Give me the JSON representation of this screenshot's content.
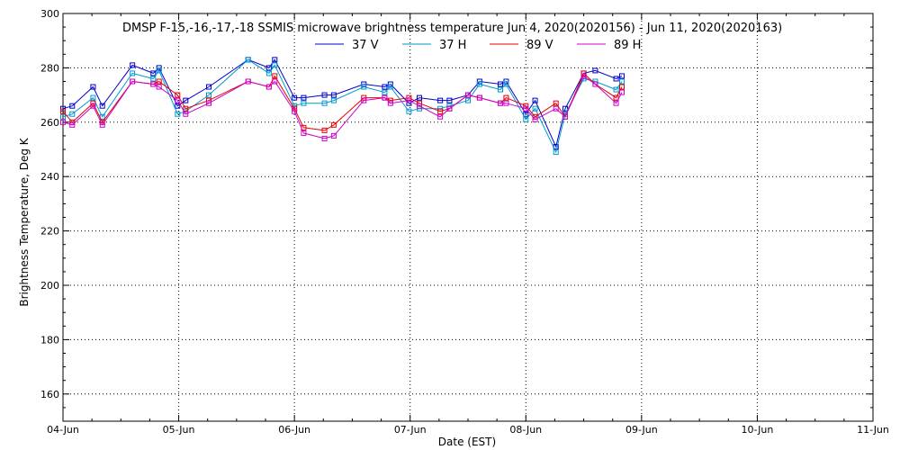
{
  "chart_data": {
    "type": "line",
    "title": "DMSP F-15,-16,-17,-18 SSMIS microwave brightness temperature Jun  4, 2020(2020156) - Jun 11, 2020(2020163)",
    "xlabel": "Date (EST)",
    "ylabel": "Brightness Temperature, Deg K",
    "x_ticks": [
      "04-Jun",
      "05-Jun",
      "06-Jun",
      "07-Jun",
      "08-Jun",
      "09-Jun",
      "10-Jun",
      "11-Jun"
    ],
    "xlim": [
      0,
      7
    ],
    "x_units": "days since 04-Jun",
    "ylim": [
      150,
      300
    ],
    "y_ticks": [
      160,
      180,
      200,
      220,
      240,
      260,
      280,
      300
    ],
    "grid": true,
    "legend_position": "top",
    "x": [
      0.0,
      0.08,
      0.26,
      0.34,
      0.6,
      0.78,
      0.83,
      0.99,
      1.06,
      1.26,
      1.6,
      1.78,
      1.83,
      2.0,
      2.08,
      2.26,
      2.34,
      2.6,
      2.78,
      2.83,
      2.99,
      3.08,
      3.26,
      3.34,
      3.5,
      3.6,
      3.78,
      3.83,
      4.0,
      4.08,
      4.26,
      4.34,
      4.5,
      4.6,
      4.78,
      4.83
    ],
    "series": [
      {
        "name": "37 V",
        "color": "#0000cc",
        "values": [
          265,
          266,
          273,
          266,
          281,
          278,
          280,
          266,
          268,
          273,
          283,
          280,
          283,
          269,
          269,
          270,
          270,
          274,
          273,
          274,
          267,
          269,
          268,
          268,
          270,
          275,
          274,
          275,
          263,
          268,
          251,
          265,
          278,
          279,
          276,
          277
        ]
      },
      {
        "name": "37 H",
        "color": "#0099cc",
        "values": [
          262,
          263,
          269,
          262,
          278,
          276,
          279,
          263,
          264,
          270,
          283,
          278,
          281,
          266,
          267,
          267,
          268,
          273,
          271,
          273,
          264,
          265,
          265,
          266,
          268,
          274,
          272,
          274,
          261,
          265,
          249,
          263,
          276,
          275,
          272,
          275
        ]
      },
      {
        "name": "89 V",
        "color": "#e60000",
        "values": [
          264,
          260,
          267,
          260,
          275,
          274,
          275,
          270,
          265,
          268,
          275,
          273,
          277,
          265,
          258,
          257,
          259,
          269,
          269,
          268,
          269,
          267,
          264,
          265,
          270,
          269,
          267,
          269,
          266,
          262,
          267,
          262,
          278,
          274,
          269,
          273
        ]
      },
      {
        "name": "89 H",
        "color": "#cc00cc",
        "values": [
          260,
          259,
          266,
          259,
          275,
          274,
          273,
          268,
          263,
          267,
          275,
          273,
          275,
          264,
          256,
          254,
          255,
          268,
          269,
          267,
          268,
          266,
          262,
          265,
          270,
          269,
          267,
          267,
          265,
          261,
          265,
          262,
          277,
          274,
          267,
          271
        ]
      }
    ]
  }
}
